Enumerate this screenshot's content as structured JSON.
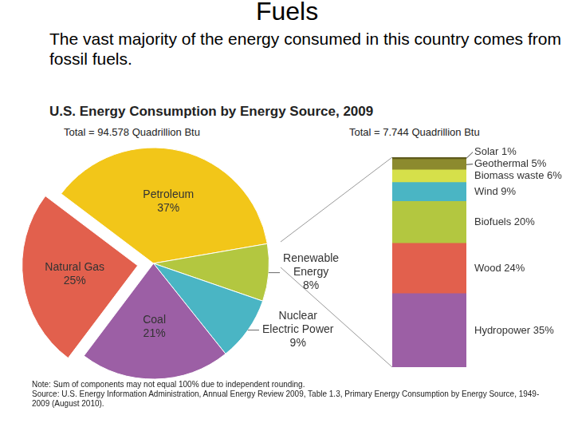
{
  "page": {
    "title": "Fuels",
    "text": "The vast majority of the energy consumed in this country comes from fossil fuels.",
    "note": "Note: Sum of components may not equal 100% due to independent rounding.",
    "source": "Source: U.S. Energy Information Administration, Annual Energy Review 2009, Table 1.3, Primary Energy Consumption by Energy Source, 1949-2009 (August 2010)."
  },
  "chart_data": [
    {
      "type": "pie",
      "title": "U.S. Energy Consumption by Energy Source, 2009",
      "subtitle": "Total = 94.578 Quadrillion Btu",
      "categories": [
        "Petroleum",
        "Renewable Energy",
        "Nuclear Electric Power",
        "Coal",
        "Natural Gas"
      ],
      "values": [
        37,
        8,
        9,
        21,
        25
      ],
      "value_labels": [
        "37%",
        "8%",
        "9%",
        "21%",
        "25%"
      ],
      "colors": [
        "#f2c619",
        "#b3c740",
        "#4ab5c4",
        "#9c5fa5",
        "#e2604d"
      ],
      "data_labels": true
    },
    {
      "type": "bar",
      "subtitle": "Total = 7.744 Quadrillion Btu",
      "categories": [
        null
      ],
      "series": [
        {
          "name": "Hydropower",
          "color": "#9c5fa5",
          "values": [
            35
          ],
          "value_labels": [
            "35%"
          ]
        },
        {
          "name": "Wood",
          "color": "#e2604d",
          "values": [
            24
          ],
          "value_labels": [
            "24%"
          ]
        },
        {
          "name": "Biofuels",
          "color": "#b3c740",
          "values": [
            20
          ],
          "value_labels": [
            "20%"
          ]
        },
        {
          "name": "Wind",
          "color": "#4ab5c4",
          "values": [
            9
          ],
          "value_labels": [
            "9%"
          ]
        },
        {
          "name": "Biomass waste",
          "color": "#d6e04a",
          "values": [
            6
          ],
          "value_labels": [
            "6%"
          ]
        },
        {
          "name": "Geothermal",
          "color": "#8c8a2e",
          "values": [
            5
          ],
          "value_labels": [
            "5%"
          ]
        },
        {
          "name": "Solar",
          "color": "#5e5a1c",
          "values": [
            1
          ],
          "value_labels": [
            "1%"
          ]
        }
      ],
      "stacked": true,
      "ylim": [
        0,
        100
      ],
      "grid": false,
      "tick_labels": false,
      "data_labels": true
    }
  ]
}
